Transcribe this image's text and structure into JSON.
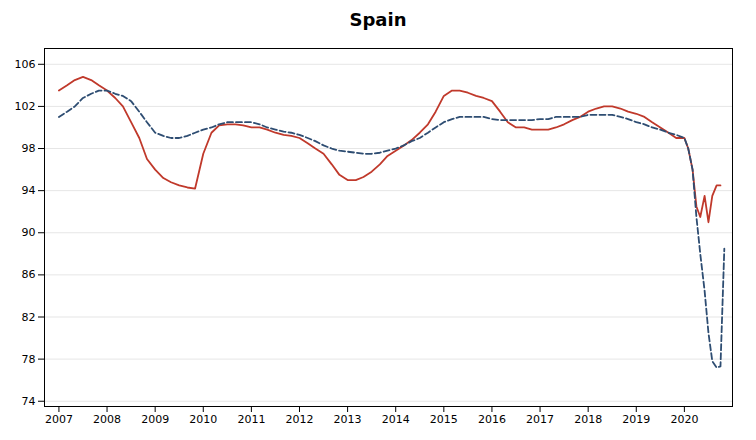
{
  "chart_data": {
    "type": "line",
    "title": "Spain",
    "xlim": [
      2006.7,
      2021.0
    ],
    "xticks": [
      2007,
      2008,
      2009,
      2010,
      2011,
      2012,
      2013,
      2014,
      2015,
      2016,
      2017,
      2018,
      2019,
      2020
    ],
    "ylim": [
      73.5,
      107.5
    ],
    "yticks": [
      74,
      78,
      82,
      86,
      90,
      94,
      98,
      102,
      106
    ],
    "grid": true,
    "series": [
      {
        "color": "#c0392b",
        "line_style": "solid",
        "x": [
          2007.0,
          2007.17,
          2007.33,
          2007.5,
          2007.67,
          2007.83,
          2008.0,
          2008.17,
          2008.33,
          2008.5,
          2008.67,
          2008.83,
          2009.0,
          2009.17,
          2009.33,
          2009.5,
          2009.67,
          2009.83,
          2010.0,
          2010.17,
          2010.33,
          2010.5,
          2010.67,
          2010.83,
          2011.0,
          2011.17,
          2011.33,
          2011.5,
          2011.67,
          2011.83,
          2012.0,
          2012.17,
          2012.33,
          2012.5,
          2012.67,
          2012.83,
          2013.0,
          2013.17,
          2013.33,
          2013.5,
          2013.67,
          2013.83,
          2014.0,
          2014.17,
          2014.33,
          2014.5,
          2014.67,
          2014.83,
          2015.0,
          2015.17,
          2015.33,
          2015.5,
          2015.67,
          2015.83,
          2016.0,
          2016.17,
          2016.33,
          2016.5,
          2016.67,
          2016.83,
          2017.0,
          2017.17,
          2017.33,
          2017.5,
          2017.67,
          2017.83,
          2018.0,
          2018.17,
          2018.33,
          2018.5,
          2018.67,
          2018.83,
          2019.0,
          2019.17,
          2019.33,
          2019.5,
          2019.67,
          2019.83,
          2020.0,
          2020.08,
          2020.17,
          2020.25,
          2020.33,
          2020.42,
          2020.5,
          2020.58,
          2020.67,
          2020.75
        ],
        "values": [
          103.5,
          104.0,
          104.5,
          104.8,
          104.5,
          104.0,
          103.5,
          102.8,
          102.0,
          100.5,
          99.0,
          97.0,
          96.0,
          95.2,
          94.8,
          94.5,
          94.3,
          94.2,
          97.5,
          99.5,
          100.2,
          100.3,
          100.3,
          100.2,
          100.0,
          100.0,
          99.8,
          99.5,
          99.3,
          99.2,
          99.0,
          98.5,
          98.0,
          97.5,
          96.5,
          95.5,
          95.0,
          95.0,
          95.3,
          95.8,
          96.5,
          97.3,
          97.8,
          98.3,
          98.8,
          99.5,
          100.3,
          101.5,
          103.0,
          103.5,
          103.5,
          103.3,
          103.0,
          102.8,
          102.5,
          101.5,
          100.5,
          100.0,
          100.0,
          99.8,
          99.8,
          99.8,
          100.0,
          100.3,
          100.7,
          101.0,
          101.5,
          101.8,
          102.0,
          102.0,
          101.8,
          101.5,
          101.3,
          101.0,
          100.5,
          100.0,
          99.5,
          99.0,
          99.0,
          98.0,
          96.0,
          92.5,
          91.5,
          93.5,
          91.0,
          93.5,
          94.5,
          94.5
        ]
      },
      {
        "color": "#2e4d72",
        "line_style": "dashed",
        "x": [
          2007.0,
          2007.17,
          2007.33,
          2007.5,
          2007.67,
          2007.83,
          2008.0,
          2008.17,
          2008.33,
          2008.5,
          2008.67,
          2008.83,
          2009.0,
          2009.17,
          2009.33,
          2009.5,
          2009.67,
          2009.83,
          2010.0,
          2010.17,
          2010.33,
          2010.5,
          2010.67,
          2010.83,
          2011.0,
          2011.17,
          2011.33,
          2011.5,
          2011.67,
          2011.83,
          2012.0,
          2012.17,
          2012.33,
          2012.5,
          2012.67,
          2012.83,
          2013.0,
          2013.17,
          2013.33,
          2013.5,
          2013.67,
          2013.83,
          2014.0,
          2014.17,
          2014.33,
          2014.5,
          2014.67,
          2014.83,
          2015.0,
          2015.17,
          2015.33,
          2015.5,
          2015.67,
          2015.83,
          2016.0,
          2016.17,
          2016.33,
          2016.5,
          2016.67,
          2016.83,
          2017.0,
          2017.17,
          2017.33,
          2017.5,
          2017.67,
          2017.83,
          2018.0,
          2018.17,
          2018.33,
          2018.5,
          2018.67,
          2018.83,
          2019.0,
          2019.17,
          2019.33,
          2019.5,
          2019.67,
          2019.83,
          2020.0,
          2020.08,
          2020.17,
          2020.25,
          2020.33,
          2020.42,
          2020.5,
          2020.58,
          2020.67,
          2020.75,
          2020.83
        ],
        "values": [
          101.0,
          101.5,
          102.0,
          102.8,
          103.2,
          103.5,
          103.5,
          103.2,
          103.0,
          102.5,
          101.5,
          100.5,
          99.5,
          99.2,
          99.0,
          99.0,
          99.2,
          99.5,
          99.8,
          100.0,
          100.3,
          100.5,
          100.5,
          100.5,
          100.5,
          100.3,
          100.0,
          99.8,
          99.6,
          99.5,
          99.3,
          99.0,
          98.7,
          98.3,
          98.0,
          97.8,
          97.7,
          97.6,
          97.5,
          97.5,
          97.6,
          97.8,
          98.0,
          98.3,
          98.7,
          99.0,
          99.5,
          100.0,
          100.5,
          100.8,
          101.0,
          101.0,
          101.0,
          101.0,
          100.8,
          100.7,
          100.7,
          100.7,
          100.7,
          100.7,
          100.8,
          100.8,
          101.0,
          101.0,
          101.0,
          101.0,
          101.2,
          101.2,
          101.2,
          101.2,
          101.0,
          100.8,
          100.5,
          100.3,
          100.0,
          99.8,
          99.5,
          99.3,
          99.0,
          98.0,
          96.0,
          91.5,
          88.0,
          84.5,
          80.5,
          77.8,
          77.2,
          77.3,
          88.5
        ]
      }
    ]
  }
}
